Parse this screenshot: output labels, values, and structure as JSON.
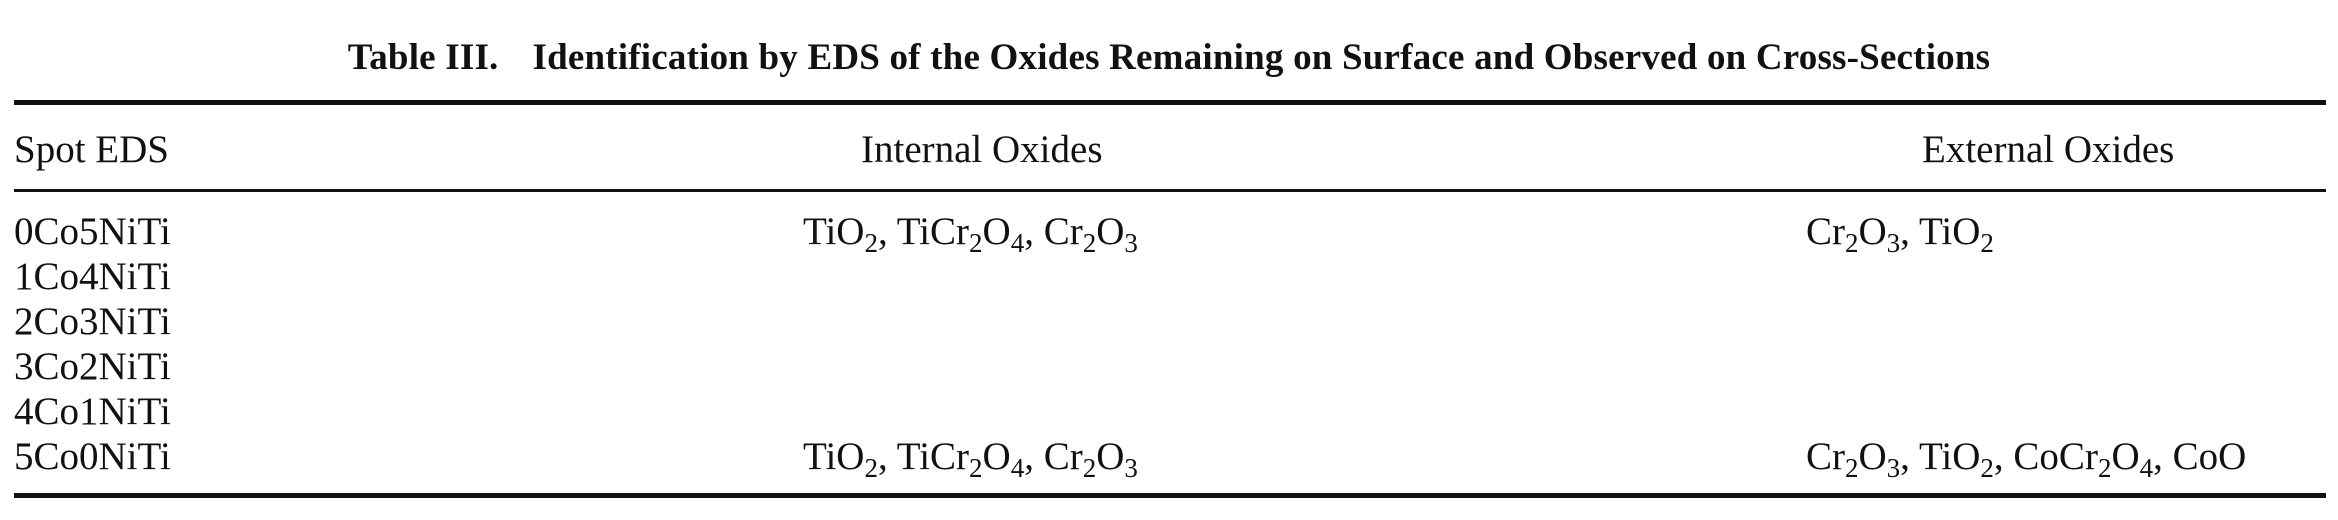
{
  "table": {
    "caption_label": "Table III.",
    "caption_text": "Identification by EDS of the Oxides Remaining on Surface and Observed on Cross-Sections",
    "headers": {
      "spot": "Spot EDS",
      "internal": "Internal Oxides",
      "external": "External Oxides"
    },
    "rows": [
      {
        "spot": "0Co5NiTi",
        "internal": "TiO2, TiCr2O4, Cr2O3",
        "external": "Cr2O3, TiO2"
      },
      {
        "spot": "1Co4NiTi",
        "internal": "",
        "external": ""
      },
      {
        "spot": "2Co3NiTi",
        "internal": "",
        "external": ""
      },
      {
        "spot": "3Co2NiTi",
        "internal": "",
        "external": ""
      },
      {
        "spot": "4Co1NiTi",
        "internal": "",
        "external": ""
      },
      {
        "spot": "5Co0NiTi",
        "internal": "TiO2, TiCr2O4, Cr2O3",
        "external": "Cr2O3, TiO2, CoCr2O4, CoO"
      }
    ]
  }
}
